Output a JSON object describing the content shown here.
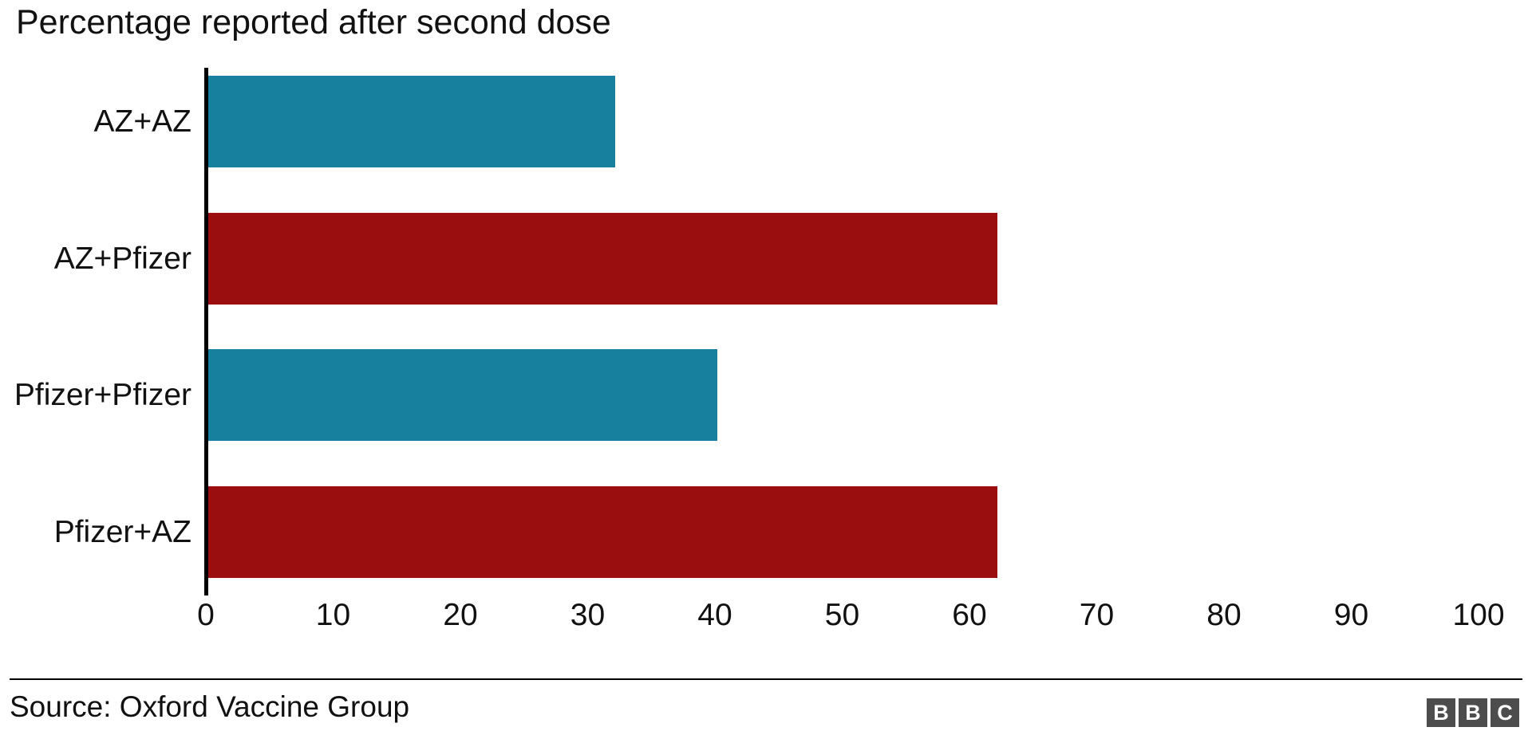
{
  "chart_data": {
    "type": "bar",
    "orientation": "horizontal",
    "title": "Percentage reported after second dose",
    "categories": [
      "AZ+AZ",
      "AZ+Pfizer",
      "Pfizer+Pfizer",
      "Pfizer+AZ"
    ],
    "values": [
      32,
      62,
      40,
      62
    ],
    "bar_colors": [
      "#17809E",
      "#9B0E10",
      "#17809E",
      "#9B0E10"
    ],
    "xlabel": "",
    "ylabel": "",
    "xlim": [
      0,
      100
    ],
    "xticks": [
      0,
      10,
      20,
      30,
      40,
      50,
      60,
      70,
      80,
      90,
      100
    ],
    "grid": false,
    "legend": "none"
  },
  "colors": {
    "teal": "#17809E",
    "dark_red": "#9B0E10",
    "axis": "#000000",
    "text": "#111111",
    "logo_block": "#4d4d4d"
  },
  "footer": {
    "source": "Source: Oxford Vaccine Group",
    "logo_letters": [
      "B",
      "B",
      "C"
    ]
  }
}
